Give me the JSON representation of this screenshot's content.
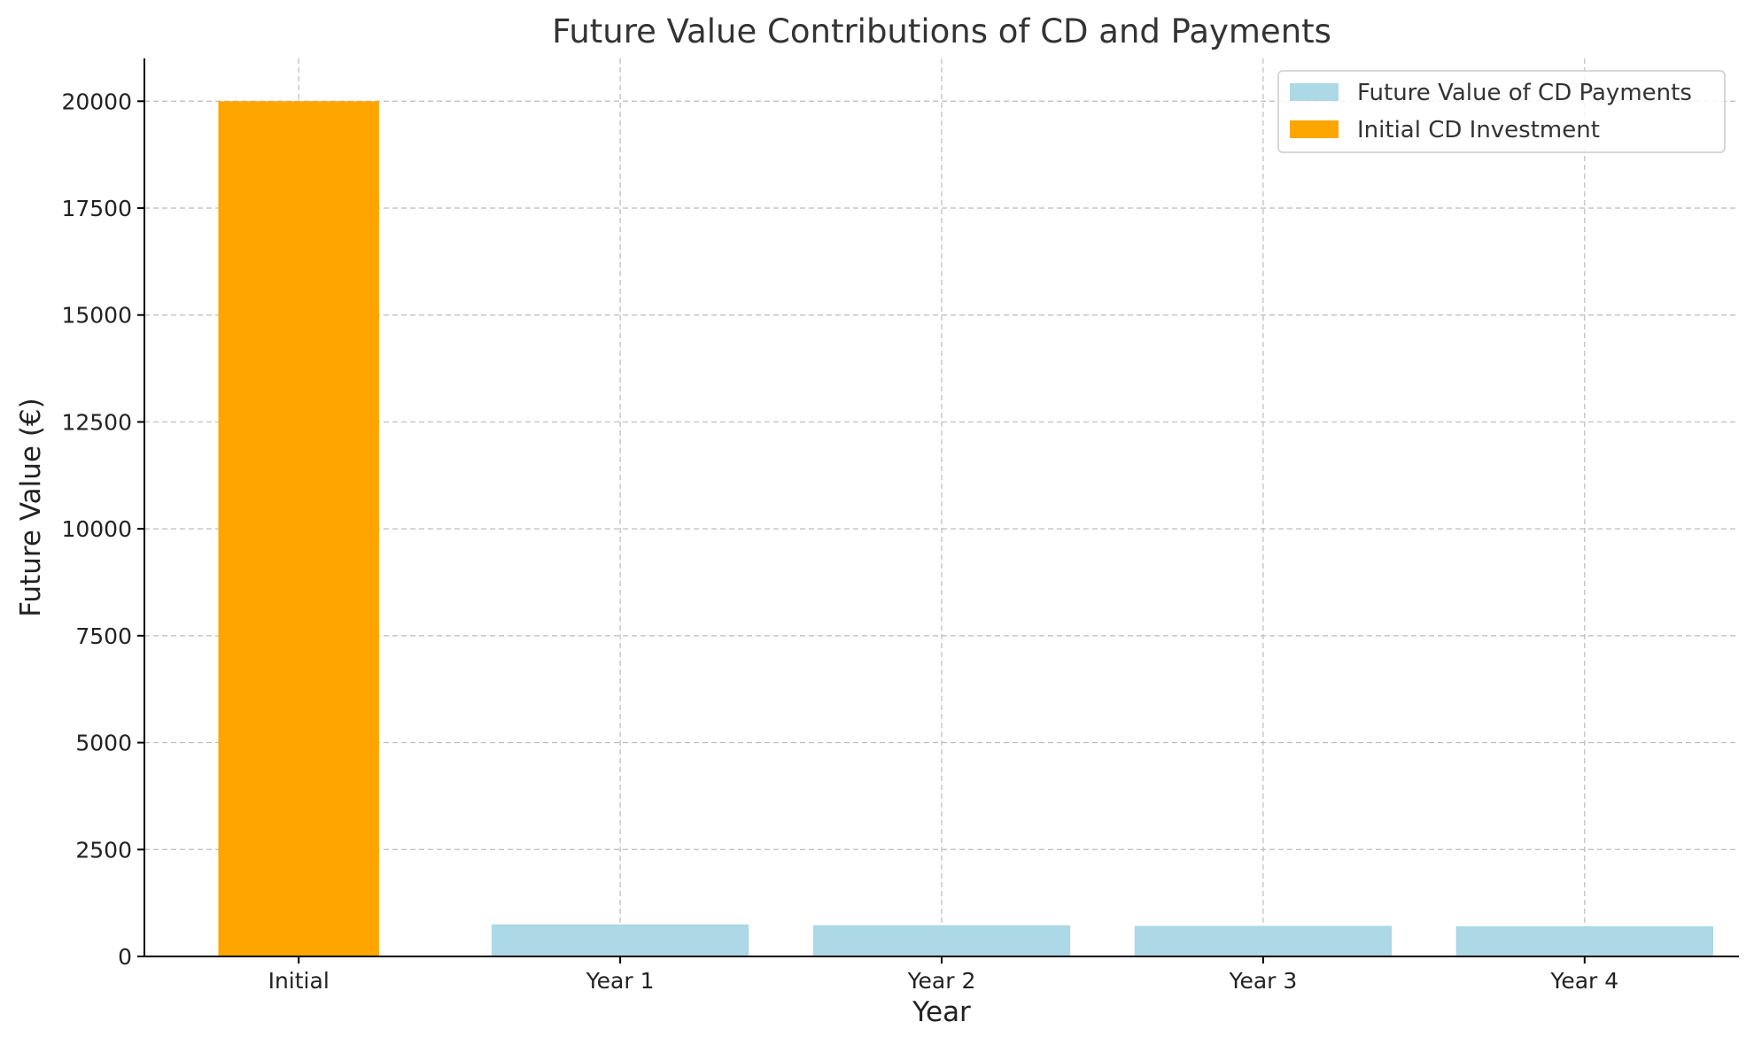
{
  "chart_data": {
    "type": "bar",
    "title": "Future Value Contributions of CD and Payments",
    "xlabel": "Year",
    "ylabel": "Future Value (€)",
    "categories": [
      "Initial",
      "Year 1",
      "Year 2",
      "Year 3",
      "Year 4"
    ],
    "ylim": [
      0,
      21000
    ],
    "yticks": [
      0,
      2500,
      5000,
      7500,
      10000,
      12500,
      15000,
      17500,
      20000
    ],
    "grid": true,
    "legend_position": "top-right",
    "series": [
      {
        "name": "Future Value of CD Payments",
        "color": "#add8e6",
        "values": [
          null,
          750,
          730,
          715,
          705
        ]
      },
      {
        "name": "Initial CD Investment",
        "color": "#ffa500",
        "values": [
          20000,
          null,
          null,
          null,
          null
        ]
      }
    ]
  }
}
